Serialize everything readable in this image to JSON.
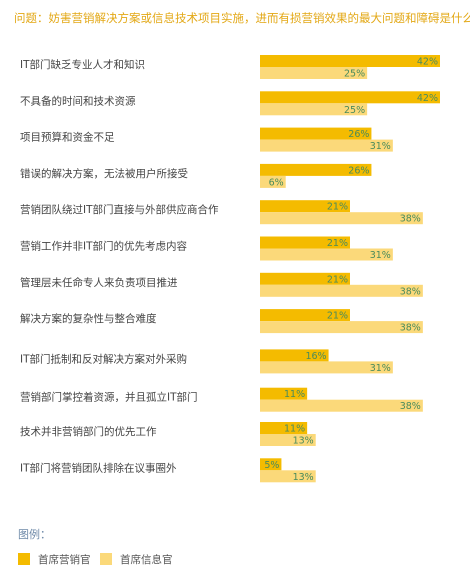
{
  "question": "问题：妨害营销解决方案或信息技术项目实施，进而有损营销效果的最大问题和障碍是什么？",
  "legend": {
    "title": "图例：",
    "items": [
      {
        "label": "首席营销官",
        "color": "#f4bb00"
      },
      {
        "label": "首席信息官",
        "color": "#fbd97a"
      }
    ]
  },
  "chart_data": {
    "type": "bar",
    "orientation": "horizontal",
    "value_format": "percent",
    "categories": [
      "IT部门缺乏专业人才和知识",
      "不具备的时间和技术资源",
      "项目预算和资金不足",
      "错误的解决方案，无法被用户所接受",
      "营销团队绕过IT部门直接与外部供应商合作",
      "营销工作并非IT部门的优先考虑内容",
      "管理层未任命专人来负责项目推进",
      "解决方案的复杂性与整合难度",
      "IT部门抵制和反对解决方案对外采购",
      "营销部门掌控着资源，并且孤立IT部门",
      "技术并非营销部门的优先工作",
      "IT部门将营销团队排除在议事圈外"
    ],
    "series": [
      {
        "name": "首席营销官",
        "color": "#f4bb00",
        "values": [
          42,
          42,
          26,
          26,
          21,
          21,
          21,
          21,
          16,
          11,
          11,
          5
        ]
      },
      {
        "name": "首席信息官",
        "color": "#fbd97a",
        "values": [
          25,
          25,
          31,
          6,
          38,
          31,
          38,
          38,
          31,
          38,
          13,
          13
        ]
      }
    ],
    "xlim": [
      0,
      42
    ],
    "label_color": "#4a8b5c"
  }
}
